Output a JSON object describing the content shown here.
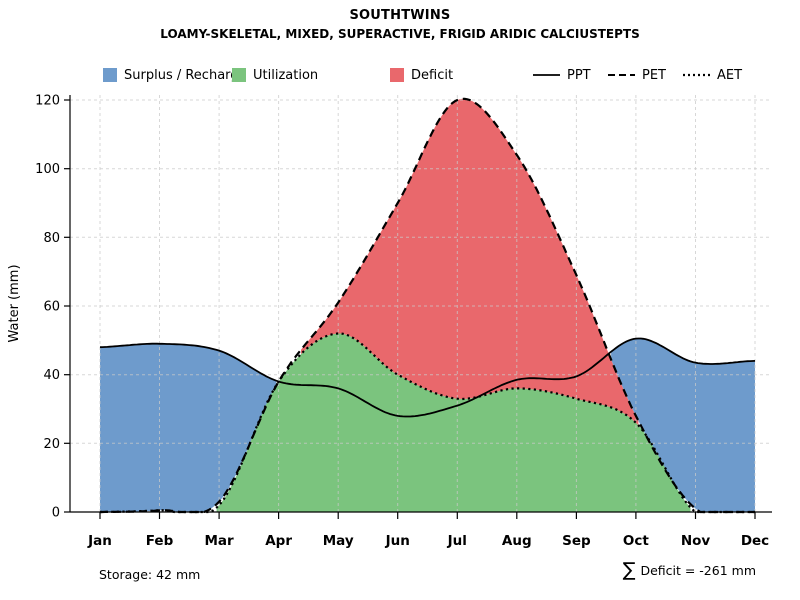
{
  "title": "SOUTHTWINS",
  "subtitle": "LOAMY-SKELETAL, MIXED, SUPERACTIVE, FRIGID ARIDIC CALCIUSTEPTS",
  "legend": {
    "regions": [
      {
        "label": "Surplus / Recharge",
        "color": "#6e9bcc"
      },
      {
        "label": "Utilization",
        "color": "#7bc47e"
      },
      {
        "label": "Deficit",
        "color": "#e9686c"
      }
    ],
    "lines": [
      {
        "label": "PPT",
        "style": "solid"
      },
      {
        "label": "PET",
        "style": "dashed"
      },
      {
        "label": "AET",
        "style": "dotted"
      }
    ]
  },
  "annotations": {
    "storage": "Storage: 42 mm",
    "sum_symbol": "∑",
    "deficit": "Deficit = -261 mm"
  },
  "chart_data": {
    "type": "area",
    "title": "SOUTHTWINS",
    "subtitle": "LOAMY-SKELETAL, MIXED, SUPERACTIVE, FRIGID ARIDIC CALCIUSTEPTS",
    "ylabel": "Water (mm)",
    "ylim": [
      0,
      120
    ],
    "yticks": [
      0,
      20,
      40,
      60,
      80,
      100,
      120
    ],
    "categories": [
      "Jan",
      "Feb",
      "Mar",
      "Apr",
      "May",
      "Jun",
      "Jul",
      "Aug",
      "Sep",
      "Oct",
      "Nov",
      "Dec"
    ],
    "series": [
      {
        "name": "PPT",
        "style": "solid",
        "values": [
          48,
          49,
          47,
          38,
          36,
          28,
          31,
          38.5,
          39.5,
          50.5,
          43.5,
          44
        ]
      },
      {
        "name": "PET",
        "style": "dashed",
        "values": [
          0,
          0.5,
          3,
          38,
          61,
          90,
          120,
          104,
          69,
          28,
          1,
          0
        ]
      },
      {
        "name": "AET",
        "style": "dotted",
        "values": [
          0,
          0.5,
          2,
          38,
          52,
          40,
          33,
          36,
          33,
          26,
          0,
          0
        ]
      }
    ],
    "regions": [
      {
        "name": "Surplus / Recharge",
        "color": "#6e9bcc"
      },
      {
        "name": "Utilization",
        "color": "#7bc47e"
      },
      {
        "name": "Deficit",
        "color": "#e9686c"
      }
    ],
    "grid": true,
    "legend_position": "top"
  }
}
